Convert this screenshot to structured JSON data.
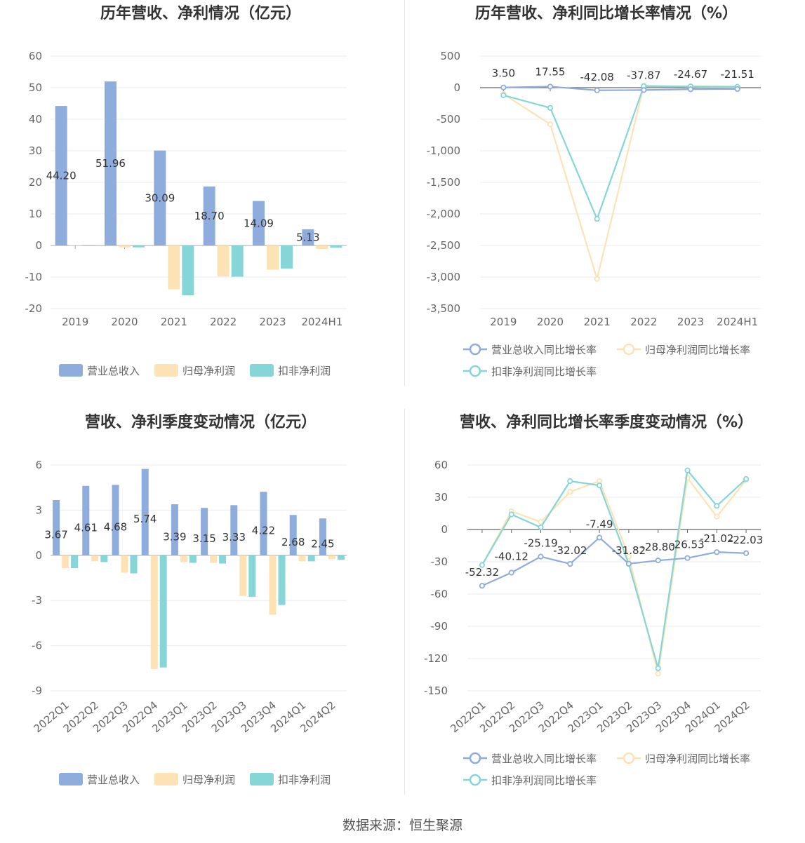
{
  "colors": {
    "revenue": "#8eacdc",
    "netprofit": "#fde2b5",
    "deducted": "#86d6d8",
    "grid": "#e8ebf2",
    "axis": "#aaaaaa"
  },
  "source": "数据来源：恒生聚源",
  "legend_bar": [
    "营业总收入",
    "归母净利润",
    "扣非净利润"
  ],
  "legend_line": [
    "营业总收入同比增长率",
    "归母净利润同比增长率",
    "扣非净利润同比增长率"
  ],
  "chart_data": [
    {
      "type": "bar",
      "title": "历年营收、净利情况（亿元）",
      "categories": [
        "2019",
        "2020",
        "2021",
        "2022",
        "2023",
        "2024H1"
      ],
      "ylim": [
        -20,
        60
      ],
      "yticks": [
        -20,
        -10,
        0,
        10,
        20,
        30,
        40,
        50,
        60
      ],
      "series": [
        {
          "name": "营业总收入",
          "values": [
            44.2,
            51.96,
            30.09,
            18.7,
            14.09,
            5.13
          ],
          "labels": [
            "44.20",
            "51.96",
            "30.09",
            "18.70",
            "14.09",
            "5.13"
          ]
        },
        {
          "name": "归母净利润",
          "values": [
            0.2,
            -0.6,
            -13.9,
            -9.8,
            -7.7,
            -1.1
          ]
        },
        {
          "name": "扣非净利润",
          "values": [
            0.2,
            -0.6,
            -15.8,
            -9.9,
            -7.3,
            -0.7
          ]
        }
      ],
      "legend": "bottom"
    },
    {
      "type": "line",
      "title": "历年营收、净利同比增长率情况（%）",
      "categories": [
        "2019",
        "2020",
        "2021",
        "2022",
        "2023",
        "2024H1"
      ],
      "ylim": [
        -3500,
        500
      ],
      "yticks": [
        -3500,
        -3000,
        -2500,
        -2000,
        -1500,
        -1000,
        -500,
        0,
        500
      ],
      "ytick_labels": [
        "-3,500",
        "-3,000",
        "-2,500",
        "-2,000",
        "-1,500",
        "-1,000",
        "-500",
        "0",
        "500"
      ],
      "series": [
        {
          "name": "营业总收入同比增长率",
          "values": [
            3.5,
            17.55,
            -42.08,
            -37.87,
            -24.67,
            -21.51
          ],
          "labels": [
            "3.50",
            "17.55",
            "-42.08",
            "-37.87",
            "-24.67",
            "-21.51"
          ]
        },
        {
          "name": "归母净利润同比增长率",
          "values": [
            -100,
            -580,
            -3030,
            30,
            15,
            10
          ]
        },
        {
          "name": "扣非净利润同比增长率",
          "values": [
            -120,
            -320,
            -2080,
            25,
            20,
            15
          ]
        }
      ],
      "legend": "bottom"
    },
    {
      "type": "bar",
      "title": "营收、净利季度变动情况（亿元）",
      "categories": [
        "2022Q1",
        "2022Q2",
        "2022Q3",
        "2022Q4",
        "2023Q1",
        "2023Q2",
        "2023Q3",
        "2023Q4",
        "2024Q1",
        "2024Q2"
      ],
      "ylim": [
        -9,
        6
      ],
      "yticks": [
        -9,
        -6,
        -3,
        0,
        3,
        6
      ],
      "series": [
        {
          "name": "营业总收入",
          "values": [
            3.67,
            4.61,
            4.68,
            5.74,
            3.39,
            3.15,
            3.33,
            4.22,
            2.68,
            2.45
          ],
          "labels": [
            "3.67",
            "4.61",
            "4.68",
            "5.74",
            "3.39",
            "3.15",
            "3.33",
            "4.22",
            "2.68",
            "2.45"
          ]
        },
        {
          "name": "归母净利润",
          "values": [
            -0.85,
            -0.4,
            -1.15,
            -7.55,
            -0.45,
            -0.5,
            -2.7,
            -3.95,
            -0.4,
            -0.25
          ]
        },
        {
          "name": "扣非净利润",
          "values": [
            -0.85,
            -0.45,
            -1.2,
            -7.45,
            -0.5,
            -0.55,
            -2.75,
            -3.3,
            -0.4,
            -0.3
          ]
        }
      ],
      "legend": "bottom"
    },
    {
      "type": "line",
      "title": "营收、净利同比增长率季度变动情况（%）",
      "categories": [
        "2022Q1",
        "2022Q2",
        "2022Q3",
        "2022Q4",
        "2023Q1",
        "2023Q2",
        "2023Q3",
        "2023Q4",
        "2024Q1",
        "2024Q2"
      ],
      "ylim": [
        -150,
        60
      ],
      "yticks": [
        -150,
        -120,
        -90,
        -60,
        -30,
        0,
        30,
        60
      ],
      "series": [
        {
          "name": "营业总收入同比增长率",
          "values": [
            -52.32,
            -40.12,
            -25.19,
            -32.02,
            -7.49,
            -31.82,
            -28.8,
            -26.53,
            -21.02,
            -22.03
          ],
          "labels": [
            "-52.32",
            "-40.12",
            "-25.19",
            "-32.02",
            "-7.49",
            "-31.82",
            "-28.80",
            "-26.53",
            "-21.02",
            "-22.03"
          ]
        },
        {
          "name": "归母净利润同比增长率",
          "values": [
            -33,
            17,
            7,
            35,
            45,
            -25,
            -134,
            48,
            12,
            46
          ]
        },
        {
          "name": "扣非净利润同比增长率",
          "values": [
            -33,
            14,
            2,
            45,
            41,
            -32,
            -129,
            55,
            22,
            47
          ]
        }
      ],
      "legend": "bottom"
    }
  ]
}
